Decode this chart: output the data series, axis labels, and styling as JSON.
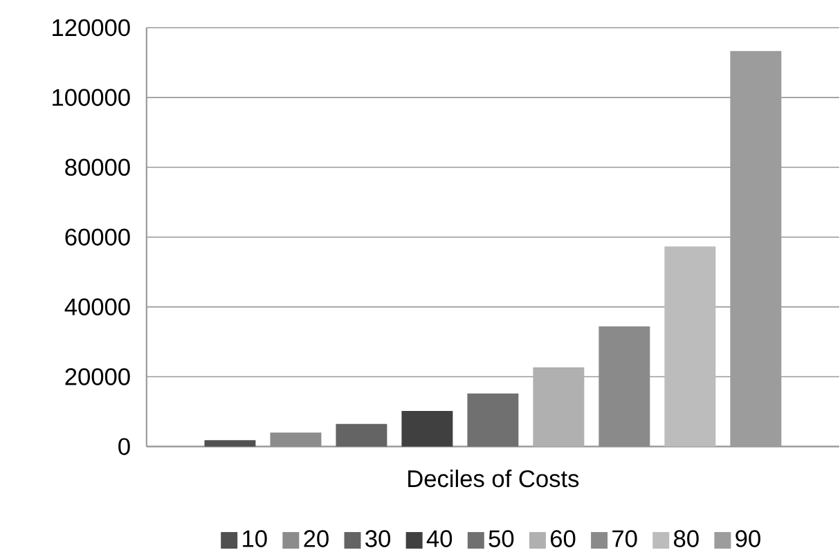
{
  "chart_data": {
    "type": "bar",
    "categories": [
      "Deciles of Costs"
    ],
    "series": [
      {
        "name": "10",
        "color": "#505050",
        "values": [
          1800
        ]
      },
      {
        "name": "20",
        "color": "#8c8c8c",
        "values": [
          4000
        ]
      },
      {
        "name": "30",
        "color": "#646464",
        "values": [
          6500
        ]
      },
      {
        "name": "40",
        "color": "#404040",
        "values": [
          10200
        ]
      },
      {
        "name": "50",
        "color": "#707070",
        "values": [
          15200
        ]
      },
      {
        "name": "60",
        "color": "#b0b0b0",
        "values": [
          22700
        ]
      },
      {
        "name": "70",
        "color": "#8a8a8a",
        "values": [
          34400
        ]
      },
      {
        "name": "80",
        "color": "#bcbcbc",
        "values": [
          57300
        ]
      },
      {
        "name": "90",
        "color": "#9c9c9c",
        "values": [
          113300
        ]
      }
    ],
    "ylim": [
      0,
      120000
    ],
    "yticks": [
      0,
      20000,
      40000,
      60000,
      80000,
      100000,
      120000
    ],
    "grid": "y",
    "legend": "bottom"
  }
}
